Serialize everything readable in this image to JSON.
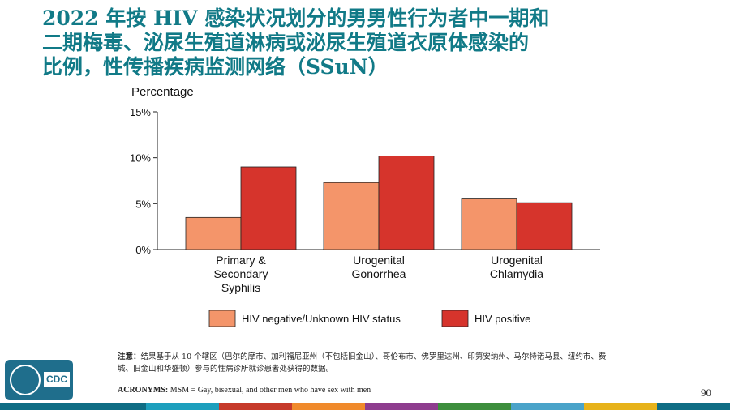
{
  "title_lines": [
    "2022 年按 HIV 感染状况划分的男男性行为者中一期和",
    "二期梅毒、泌尿生殖道淋病或泌尿生殖道衣原体感染的",
    "比例，性传播疾病监测网络（SSuN）"
  ],
  "chart_data": {
    "type": "bar",
    "ylabel": "Percentage",
    "ylim": [
      0,
      15
    ],
    "yticks": [
      0,
      5,
      10,
      15
    ],
    "ytick_labels": [
      "0%",
      "5%",
      "10%",
      "15%"
    ],
    "categories": [
      [
        "Primary &",
        "Secondary",
        "Syphilis"
      ],
      [
        "Urogenital",
        "Gonorrhea"
      ],
      [
        "Urogenital",
        "Chlamydia"
      ]
    ],
    "series": [
      {
        "name": "HIV negative/Unknown HIV status",
        "values": [
          3.5,
          7.3,
          5.6
        ]
      },
      {
        "name": "HIV positive",
        "values": [
          9.0,
          10.2,
          5.1
        ]
      }
    ],
    "legend_position": "bottom"
  },
  "colors": {
    "title": "#117a87",
    "series_fill": [
      "#f4956a",
      "#d6342c"
    ],
    "bar_stroke": "#222222",
    "footer": [
      "#0f6d84",
      "#0f6d84",
      "#1d9fbd",
      "#c63a2a",
      "#f08a2b",
      "#8e3c8e",
      "#3d8e3d",
      "#4aa3c9",
      "#e7b21a",
      "#0f6d84"
    ]
  },
  "note": {
    "label": "注意：",
    "text": "结果基于从 10 个辖区（巴尔的摩市、加利福尼亚州（不包括旧金山）、哥伦布市、佛罗里达州、印第安纳州、马尔特诺马县、纽约市、费城、旧金山和华盛顿）参与的性病诊所就诊患者处获得的数据。"
  },
  "acronyms": {
    "label": "ACRONYMS:",
    "text": "MSM = Gay, bisexual, and other men who have sex with men"
  },
  "page_number": "90",
  "logo_text": "CDC"
}
